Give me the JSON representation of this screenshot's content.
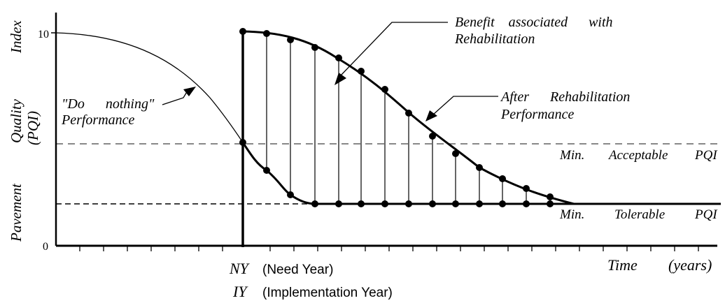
{
  "y_axis": {
    "label_word1": "Pavement",
    "label_word2": "Quality",
    "label_word3": "Index",
    "label_abbrev": "(PQI)",
    "tick_top": "10",
    "tick_bottom": "0"
  },
  "x_axis": {
    "label_time": "Time",
    "label_unit": "(years)",
    "ny_label": "NY",
    "ny_desc": "(Need Year)",
    "iy_label": "IY",
    "iy_desc": "(Implementation Year)"
  },
  "annotations": {
    "benefit_line1": "Benefit    associated      with",
    "benefit_line2": "Rehabilitation",
    "do_nothing_line1": "\"Do      nothing\"",
    "do_nothing_line2": "Performance",
    "after_rehab_line1": "After      Rehabilitation",
    "after_rehab_line2": "Performance"
  },
  "thresholds": {
    "acceptable": {
      "w1": "Min.",
      "w2": "Acceptable",
      "w3": "PQI"
    },
    "tolerable": {
      "w1": "Min.",
      "w2": "Tolerable",
      "w3": "PQI"
    }
  },
  "colors": {
    "ink": "#000000",
    "dashed": "#888888"
  }
}
